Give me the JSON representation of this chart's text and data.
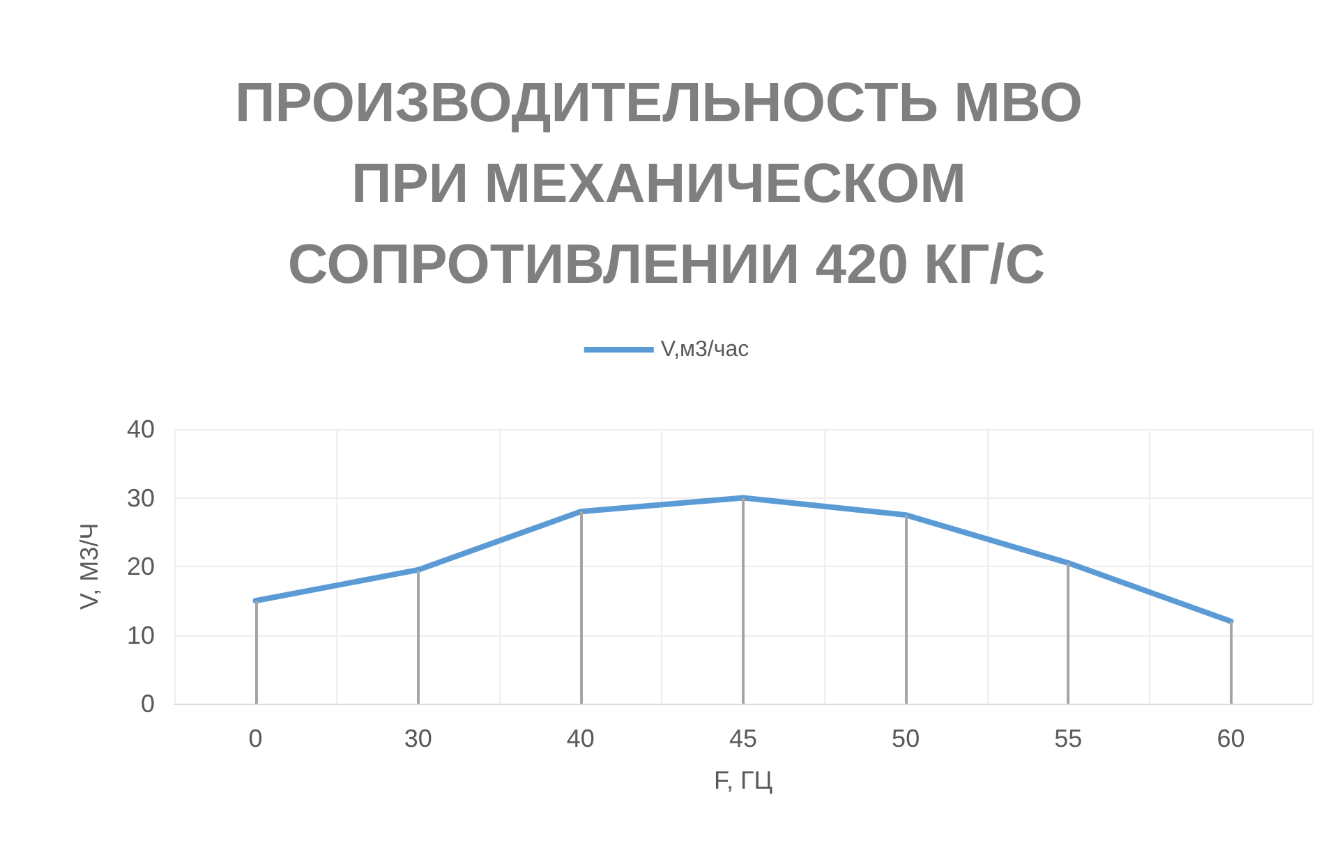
{
  "chart_data": {
    "type": "line",
    "title": "ПРОИЗВОДИТЕЛЬНОСТЬ МВО ПРИ МЕХАНИЧЕСКОМ СОПРОТИВЛЕНИИ 420 КГ/С",
    "xlabel": "F, ГЦ",
    "ylabel": "V, М3/Ч",
    "categories": [
      "0",
      "30",
      "40",
      "45",
      "50",
      "55",
      "60"
    ],
    "series": [
      {
        "name": "V,м3/час",
        "color": "#5b9bd5",
        "values": [
          15,
          19.5,
          28,
          30,
          27.5,
          20.5,
          12
        ],
        "errors": [
          [
            0,
            15
          ],
          [
            0,
            19.5
          ],
          [
            0,
            28
          ],
          [
            0,
            30
          ],
          [
            0,
            27.5
          ],
          [
            0,
            20.5
          ],
          [
            0,
            12
          ]
        ]
      }
    ],
    "ylim": [
      0,
      40
    ],
    "yticks": [
      0,
      10,
      20,
      30,
      40
    ],
    "grid": true,
    "legend": "top",
    "marker": "none",
    "line_style": "solid"
  }
}
